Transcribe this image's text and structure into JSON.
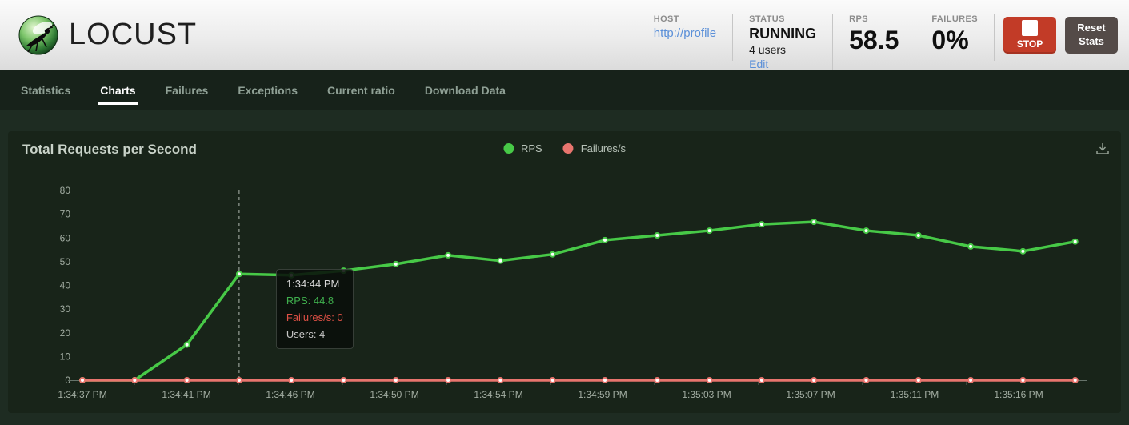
{
  "header": {
    "logo_text": "LOCUST",
    "host": {
      "label": "HOST",
      "value": "http://profile"
    },
    "status": {
      "label": "STATUS",
      "value": "RUNNING",
      "users": "4 users",
      "edit": "Edit"
    },
    "rps": {
      "label": "RPS",
      "value": "58.5"
    },
    "failures": {
      "label": "FAILURES",
      "value": "0%"
    },
    "stop_label": "STOP",
    "reset_label": "Reset Stats"
  },
  "nav": {
    "tabs": [
      {
        "label": "Statistics",
        "active": false
      },
      {
        "label": "Charts",
        "active": true
      },
      {
        "label": "Failures",
        "active": false
      },
      {
        "label": "Exceptions",
        "active": false
      },
      {
        "label": "Current ratio",
        "active": false
      },
      {
        "label": "Download Data",
        "active": false
      }
    ]
  },
  "chart": {
    "title": "Total Requests per Second",
    "legend": [
      {
        "label": "RPS",
        "color": "#47c947"
      },
      {
        "label": "Failures/s",
        "color": "#e8756e"
      }
    ],
    "tooltip": {
      "time": "1:34:44 PM",
      "rps": "RPS: 44.8",
      "failures": "Failures/s: 0",
      "users": "Users: 4"
    }
  },
  "chart_data": {
    "type": "line",
    "title": "Total Requests per Second",
    "x": [
      "1:34:38 PM",
      "1:34:40 PM",
      "1:34:42 PM",
      "1:34:44 PM",
      "1:34:46 PM",
      "1:34:48 PM",
      "1:34:50 PM",
      "1:34:52 PM",
      "1:34:54 PM",
      "1:34:56 PM",
      "1:34:58 PM",
      "1:35:00 PM",
      "1:35:02 PM",
      "1:35:04 PM",
      "1:35:06 PM",
      "1:35:08 PM",
      "1:35:10 PM",
      "1:35:12 PM",
      "1:35:14 PM",
      "1:35:16 PM"
    ],
    "series": [
      {
        "name": "RPS",
        "color": "#47c947",
        "values": [
          0,
          0,
          15,
          44.8,
          44.3,
          46.2,
          49,
          52.7,
          50.4,
          53.1,
          59.1,
          61.1,
          63.1,
          65.8,
          66.8,
          63.1,
          61.1,
          56.4,
          54.4,
          58.5
        ]
      },
      {
        "name": "Failures/s",
        "color": "#e8756e",
        "values": [
          0,
          0,
          0,
          0,
          0,
          0,
          0,
          0,
          0,
          0,
          0,
          0,
          0,
          0,
          0,
          0,
          0,
          0,
          0,
          0
        ]
      }
    ],
    "x_tick_labels": [
      "1:34:37 PM",
      "1:34:41 PM",
      "1:34:46 PM",
      "1:34:50 PM",
      "1:34:54 PM",
      "1:34:59 PM",
      "1:35:03 PM",
      "1:35:07 PM",
      "1:35:11 PM",
      "1:35:16 PM"
    ],
    "y_ticks": [
      0,
      10,
      20,
      30,
      40,
      50,
      60,
      70,
      80
    ],
    "ylim": [
      0,
      80
    ],
    "grid": false,
    "legend_position": "top-center",
    "tooltip_point_index": 3,
    "tooltip": {
      "time": "1:34:44 PM",
      "rps": 44.8,
      "failures_per_s": 0,
      "users": 4
    }
  },
  "colors": {
    "nav_bg": "#17221a",
    "page_bg": "#1e2c22",
    "panel_bg": "#182419",
    "rps_line": "#47c947",
    "failures_line": "#e8756e",
    "stop_button": "#c23b27",
    "reset_button": "#544b48",
    "link": "#5a8fd8",
    "axis_label": "#a2ada2"
  }
}
